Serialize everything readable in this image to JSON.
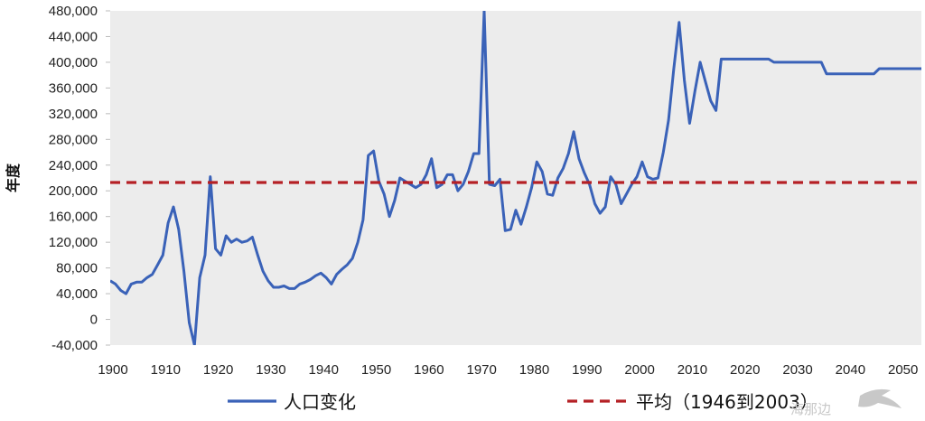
{
  "chart_data": {
    "type": "line",
    "title": "",
    "ylabel": "年度",
    "xlabel": "",
    "ylim": [
      -40000,
      480000
    ],
    "xlim": [
      1900,
      2054
    ],
    "y_ticks": [
      -40000,
      0,
      40000,
      80000,
      120000,
      160000,
      200000,
      240000,
      280000,
      320000,
      360000,
      400000,
      440000,
      480000
    ],
    "y_tick_labels": [
      "-40,000",
      "0",
      "40,000",
      "80,000",
      "120,000",
      "160,000",
      "200,000",
      "240,000",
      "280,000",
      "320,000",
      "360,000",
      "400,000",
      "440,000",
      "480,000"
    ],
    "x_ticks": [
      1900,
      1910,
      1920,
      1930,
      1940,
      1950,
      1960,
      1970,
      1980,
      1990,
      2000,
      2010,
      2020,
      2030,
      2040,
      2050
    ],
    "x_tick_labels": [
      "1900",
      "1910",
      "1920",
      "1930",
      "1940",
      "1950",
      "1960",
      "1970",
      "1980",
      "1990",
      "2000",
      "2010",
      "2020",
      "2030",
      "2040",
      "2050"
    ],
    "grid": false,
    "legend_position": "bottom",
    "series": [
      {
        "name": "人口变化",
        "color": "#3a62b8",
        "style": "solid",
        "points": [
          [
            1900,
            60000
          ],
          [
            1901,
            55000
          ],
          [
            1902,
            45000
          ],
          [
            1903,
            40000
          ],
          [
            1904,
            55000
          ],
          [
            1905,
            58000
          ],
          [
            1906,
            58000
          ],
          [
            1907,
            65000
          ],
          [
            1908,
            70000
          ],
          [
            1909,
            85000
          ],
          [
            1910,
            100000
          ],
          [
            1911,
            150000
          ],
          [
            1912,
            175000
          ],
          [
            1913,
            140000
          ],
          [
            1914,
            75000
          ],
          [
            1915,
            -5000
          ],
          [
            1916,
            -40000
          ],
          [
            1917,
            65000
          ],
          [
            1918,
            100000
          ],
          [
            1919,
            222000
          ],
          [
            1920,
            110000
          ],
          [
            1921,
            100000
          ],
          [
            1922,
            130000
          ],
          [
            1923,
            120000
          ],
          [
            1924,
            125000
          ],
          [
            1925,
            120000
          ],
          [
            1926,
            122000
          ],
          [
            1927,
            128000
          ],
          [
            1928,
            100000
          ],
          [
            1929,
            75000
          ],
          [
            1930,
            60000
          ],
          [
            1931,
            50000
          ],
          [
            1932,
            50000
          ],
          [
            1933,
            52000
          ],
          [
            1934,
            48000
          ],
          [
            1935,
            48000
          ],
          [
            1936,
            55000
          ],
          [
            1937,
            58000
          ],
          [
            1938,
            62000
          ],
          [
            1939,
            68000
          ],
          [
            1940,
            72000
          ],
          [
            1941,
            65000
          ],
          [
            1942,
            55000
          ],
          [
            1943,
            70000
          ],
          [
            1944,
            78000
          ],
          [
            1945,
            85000
          ],
          [
            1946,
            95000
          ],
          [
            1947,
            120000
          ],
          [
            1948,
            155000
          ],
          [
            1949,
            255000
          ],
          [
            1950,
            262000
          ],
          [
            1951,
            215000
          ],
          [
            1952,
            195000
          ],
          [
            1953,
            160000
          ],
          [
            1954,
            185000
          ],
          [
            1955,
            220000
          ],
          [
            1956,
            215000
          ],
          [
            1957,
            210000
          ],
          [
            1958,
            205000
          ],
          [
            1959,
            210000
          ],
          [
            1960,
            225000
          ],
          [
            1961,
            250000
          ],
          [
            1962,
            205000
          ],
          [
            1963,
            210000
          ],
          [
            1964,
            225000
          ],
          [
            1965,
            225000
          ],
          [
            1966,
            200000
          ],
          [
            1967,
            210000
          ],
          [
            1968,
            230000
          ],
          [
            1969,
            258000
          ],
          [
            1970,
            258000
          ],
          [
            1971,
            480000
          ],
          [
            1972,
            210000
          ],
          [
            1973,
            208000
          ],
          [
            1974,
            218000
          ],
          [
            1975,
            138000
          ],
          [
            1976,
            140000
          ],
          [
            1977,
            170000
          ],
          [
            1978,
            148000
          ],
          [
            1979,
            175000
          ],
          [
            1980,
            205000
          ],
          [
            1981,
            245000
          ],
          [
            1982,
            230000
          ],
          [
            1983,
            195000
          ],
          [
            1984,
            193000
          ],
          [
            1985,
            220000
          ],
          [
            1986,
            235000
          ],
          [
            1987,
            258000
          ],
          [
            1988,
            292000
          ],
          [
            1989,
            250000
          ],
          [
            1990,
            228000
          ],
          [
            1991,
            210000
          ],
          [
            1992,
            180000
          ],
          [
            1993,
            165000
          ],
          [
            1994,
            175000
          ],
          [
            1995,
            222000
          ],
          [
            1996,
            210000
          ],
          [
            1997,
            180000
          ],
          [
            1998,
            195000
          ],
          [
            1999,
            210000
          ],
          [
            2000,
            222000
          ],
          [
            2001,
            245000
          ],
          [
            2002,
            222000
          ],
          [
            2003,
            218000
          ],
          [
            2004,
            220000
          ],
          [
            2005,
            260000
          ],
          [
            2006,
            310000
          ],
          [
            2007,
            390000
          ],
          [
            2008,
            462000
          ],
          [
            2009,
            372000
          ],
          [
            2010,
            305000
          ],
          [
            2011,
            355000
          ],
          [
            2012,
            400000
          ],
          [
            2013,
            370000
          ],
          [
            2014,
            340000
          ],
          [
            2015,
            325000
          ],
          [
            2016,
            405000
          ],
          [
            2020,
            405000
          ],
          [
            2025,
            405000
          ],
          [
            2026,
            400000
          ],
          [
            2035,
            400000
          ],
          [
            2036,
            382000
          ],
          [
            2045,
            382000
          ],
          [
            2046,
            390000
          ],
          [
            2054,
            390000
          ]
        ]
      },
      {
        "name": "平均（1946到2003）",
        "color": "#b52025",
        "style": "dashed",
        "value": 213000
      }
    ]
  },
  "watermark": {
    "text": "海那边"
  }
}
